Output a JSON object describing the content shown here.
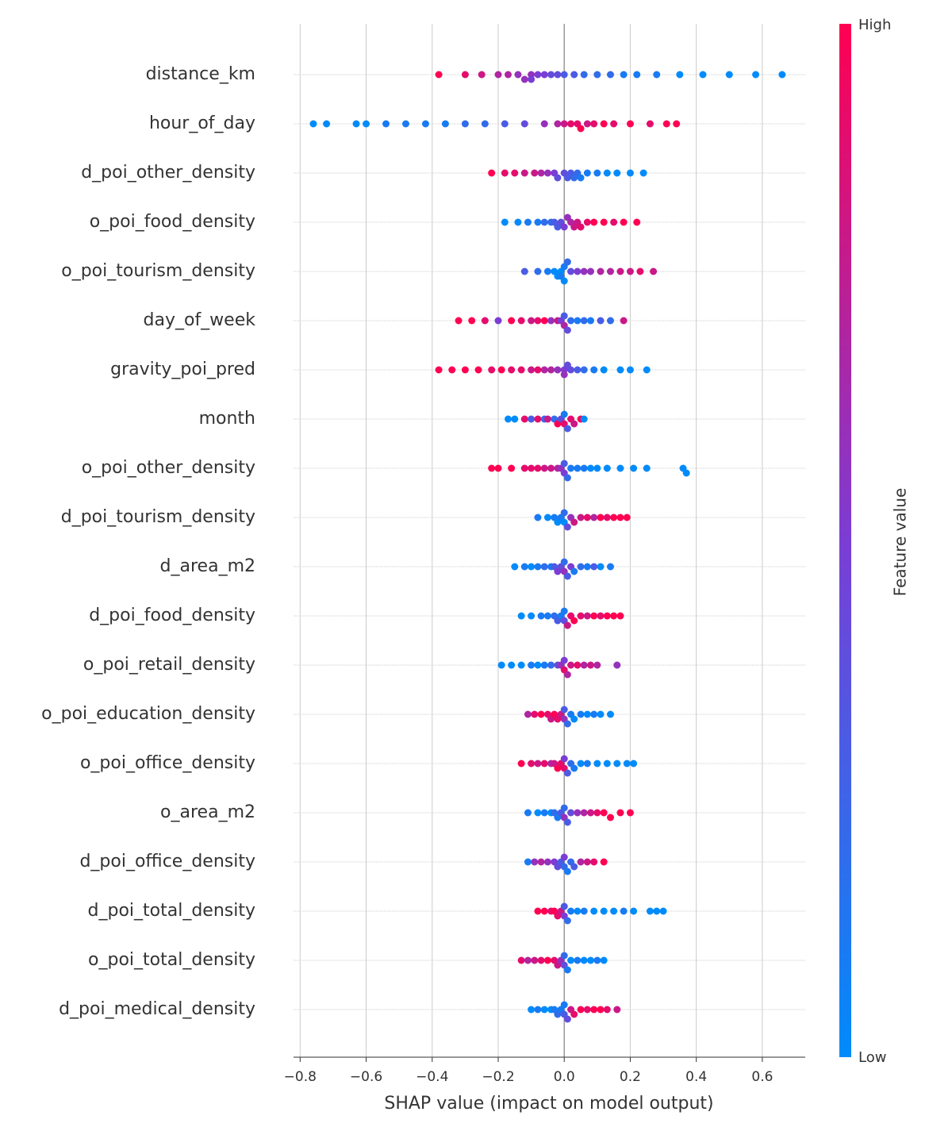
{
  "chart_data": {
    "type": "beeswarm",
    "xlabel": "SHAP value (impact on model output)",
    "xlim": [
      -0.82,
      0.73
    ],
    "xticks": [
      {
        "value": -0.8,
        "label": "−0.8"
      },
      {
        "value": -0.6,
        "label": "−0.6"
      },
      {
        "value": -0.4,
        "label": "−0.4"
      },
      {
        "value": -0.2,
        "label": "−0.2"
      },
      {
        "value": 0,
        "label": "0.0"
      },
      0.2,
      0.4,
      0.6
    ],
    "grid": true,
    "colorbar_label": "Feature value",
    "colorbar_high": "High",
    "colorbar_low": "Low",
    "colormap": [
      "#008bfb",
      "#7b3dd4",
      "#ff0052"
    ],
    "categories": [
      "distance_km",
      "hour_of_day",
      "d_poi_other_density",
      "o_poi_food_density",
      "o_poi_tourism_density",
      "day_of_week",
      "gravity_poi_pred",
      "month",
      "o_poi_other_density",
      "d_poi_tourism_density",
      "d_area_m2",
      "d_poi_food_density",
      "o_poi_retail_density",
      "o_poi_education_density",
      "o_poi_office_density",
      "o_area_m2",
      "d_poi_office_density",
      "d_poi_total_density",
      "o_poi_total_density",
      "d_poi_medical_density"
    ],
    "points": [
      {
        "shap": [
          -0.38,
          -0.3,
          -0.25,
          -0.2,
          -0.17,
          -0.14,
          -0.12,
          -0.1,
          -0.1,
          -0.08,
          -0.06,
          -0.04,
          -0.02,
          0,
          0.03,
          0.06,
          0.1,
          0.14,
          0.18,
          0.22,
          0.28,
          0.35,
          0.42,
          0.5,
          0.58,
          0.66
        ],
        "feature": [
          1,
          0.9,
          0.8,
          0.7,
          0.7,
          0.6,
          0.6,
          0.6,
          0.5,
          0.5,
          0.5,
          0.4,
          0.4,
          0.3,
          0.3,
          0.2,
          0.2,
          0.2,
          0.1,
          0.1,
          0.1,
          0,
          0,
          0,
          0,
          0
        ]
      },
      {
        "shap": [
          -0.76,
          -0.72,
          -0.63,
          -0.6,
          -0.54,
          -0.48,
          -0.42,
          -0.36,
          -0.3,
          -0.24,
          -0.18,
          -0.12,
          -0.06,
          -0.02,
          0,
          0.02,
          0.04,
          0.05,
          0.07,
          0.09,
          0.12,
          0.15,
          0.2,
          0.26,
          0.31,
          0.34
        ],
        "feature": [
          0,
          0,
          0,
          0,
          0.1,
          0.1,
          0.1,
          0.1,
          0.2,
          0.2,
          0.3,
          0.4,
          0.6,
          0.7,
          0.8,
          0.9,
          0.9,
          1,
          0.8,
          0.9,
          1,
          0.9,
          1,
          0.9,
          1,
          1
        ]
      },
      {
        "shap": [
          -0.22,
          -0.18,
          -0.15,
          -0.12,
          -0.09,
          -0.07,
          -0.05,
          -0.03,
          -0.02,
          0,
          0.01,
          0.02,
          0.03,
          0.04,
          0.05,
          0.07,
          0.1,
          0.13,
          0.16,
          0.2,
          0.24
        ],
        "feature": [
          1,
          0.9,
          0.9,
          0.8,
          0.8,
          0.7,
          0.6,
          0.5,
          0.4,
          0.4,
          0.3,
          0.3,
          0.2,
          0.2,
          0.1,
          0.1,
          0.1,
          0,
          0,
          0,
          0
        ]
      },
      {
        "shap": [
          -0.18,
          -0.14,
          -0.11,
          -0.08,
          -0.06,
          -0.04,
          -0.03,
          -0.02,
          -0.01,
          0,
          0.01,
          0.02,
          0.03,
          0.04,
          0.05,
          0.07,
          0.09,
          0.12,
          0.15,
          0.18,
          0.22
        ],
        "feature": [
          0,
          0,
          0.1,
          0.1,
          0.2,
          0.2,
          0.3,
          0.3,
          0.4,
          0.5,
          0.6,
          0.7,
          0.8,
          0.8,
          0.9,
          0.9,
          1,
          1,
          0.9,
          1,
          1
        ]
      },
      {
        "shap": [
          -0.12,
          -0.08,
          -0.05,
          -0.03,
          -0.02,
          -0.01,
          -0.01,
          0,
          0,
          0.01,
          0.02,
          0.04,
          0.06,
          0.08,
          0.11,
          0.14,
          0.17,
          0.2,
          0.23,
          0.27
        ],
        "feature": [
          0.3,
          0.2,
          0.1,
          0,
          0,
          0,
          0.1,
          0.1,
          0,
          0.2,
          0.4,
          0.5,
          0.6,
          0.6,
          0.7,
          0.7,
          0.8,
          0.8,
          0.9,
          0.8
        ]
      },
      {
        "shap": [
          -0.32,
          -0.28,
          -0.24,
          -0.2,
          -0.16,
          -0.13,
          -0.1,
          -0.08,
          -0.06,
          -0.04,
          -0.02,
          -0.01,
          0,
          0,
          0.01,
          0.02,
          0.04,
          0.06,
          0.08,
          0.11,
          0.14,
          0.18
        ],
        "feature": [
          1,
          1,
          0.9,
          0.5,
          1,
          0.9,
          0.8,
          0.9,
          1,
          0.6,
          0.8,
          0.5,
          0.7,
          0.3,
          0.4,
          0.2,
          0.1,
          0.2,
          0.1,
          0.3,
          0.2,
          0.8
        ]
      },
      {
        "shap": [
          -0.38,
          -0.34,
          -0.3,
          -0.26,
          -0.22,
          -0.19,
          -0.16,
          -0.13,
          -0.1,
          -0.08,
          -0.06,
          -0.04,
          -0.02,
          0,
          0,
          0.01,
          0.02,
          0.04,
          0.06,
          0.09,
          0.12,
          0.17,
          0.2,
          0.25
        ],
        "feature": [
          1,
          1,
          1,
          1,
          0.9,
          1,
          0.9,
          0.9,
          0.8,
          0.9,
          0.7,
          0.7,
          0.6,
          0.5,
          0.6,
          0.4,
          0.4,
          0.3,
          0.2,
          0.1,
          0,
          0,
          0,
          0
        ]
      },
      {
        "shap": [
          -0.17,
          -0.15,
          -0.12,
          -0.1,
          -0.08,
          -0.06,
          -0.05,
          -0.03,
          -0.02,
          -0.01,
          0,
          0,
          0.01,
          0.02,
          0.03,
          0.05,
          0.06
        ],
        "feature": [
          0,
          0,
          0.9,
          0.3,
          0.9,
          0.2,
          0.8,
          0.2,
          1,
          0.4,
          0.9,
          0.1,
          0.3,
          0.9,
          0.8,
          1,
          0
        ]
      },
      {
        "shap": [
          -0.22,
          -0.2,
          -0.16,
          -0.12,
          -0.1,
          -0.08,
          -0.06,
          -0.04,
          -0.02,
          -0.01,
          0,
          0,
          0.01,
          0.02,
          0.04,
          0.06,
          0.08,
          0.1,
          0.13,
          0.17,
          0.21,
          0.25,
          0.36,
          0.37
        ],
        "feature": [
          1,
          1,
          1,
          0.9,
          0.9,
          0.9,
          0.8,
          0.8,
          0.7,
          0.6,
          0.5,
          0.3,
          0.2,
          0.1,
          0.1,
          0.1,
          0,
          0,
          0,
          0,
          0,
          0,
          0,
          0
        ]
      },
      {
        "shap": [
          -0.08,
          -0.05,
          -0.03,
          -0.02,
          -0.01,
          0,
          0,
          0.01,
          0.02,
          0.03,
          0.05,
          0.07,
          0.09,
          0.11,
          0.13,
          0.15,
          0.17,
          0.19
        ],
        "feature": [
          0.1,
          0,
          0.1,
          0,
          0.1,
          0,
          0.2,
          0.4,
          0.6,
          0.8,
          0.8,
          0.9,
          0.7,
          1,
          0.9,
          1,
          1,
          1
        ]
      },
      {
        "shap": [
          -0.15,
          -0.12,
          -0.1,
          -0.08,
          -0.06,
          -0.04,
          -0.03,
          -0.02,
          -0.01,
          0,
          0,
          0.01,
          0.02,
          0.03,
          0.05,
          0.07,
          0.09,
          0.11,
          0.14
        ],
        "feature": [
          0,
          0.1,
          0,
          0.1,
          0.2,
          0.1,
          0.3,
          0.5,
          0.4,
          0.6,
          0.2,
          0.3,
          0.5,
          0.1,
          0.2,
          0.1,
          0.3,
          0,
          0.1
        ]
      },
      {
        "shap": [
          -0.13,
          -0.1,
          -0.07,
          -0.05,
          -0.03,
          -0.02,
          -0.01,
          0,
          0,
          0.01,
          0.02,
          0.03,
          0.05,
          0.07,
          0.09,
          0.11,
          0.13,
          0.15,
          0.17
        ],
        "feature": [
          0,
          0,
          0.1,
          0.1,
          0.2,
          0.3,
          0.1,
          0.4,
          0.1,
          0.8,
          0.9,
          1,
          0.9,
          0.8,
          1,
          0.9,
          1,
          1,
          1
        ]
      },
      {
        "shap": [
          -0.19,
          -0.16,
          -0.13,
          -0.1,
          -0.08,
          -0.06,
          -0.04,
          -0.02,
          -0.01,
          0,
          0,
          0.01,
          0.02,
          0.04,
          0.06,
          0.08,
          0.1,
          0.16
        ],
        "feature": [
          0,
          0,
          0,
          0.1,
          0,
          0.1,
          0.2,
          0.4,
          0.6,
          0.9,
          0.5,
          0.7,
          0.8,
          0.9,
          0.7,
          0.8,
          0.7,
          0.6
        ]
      },
      {
        "shap": [
          -0.11,
          -0.09,
          -0.07,
          -0.05,
          -0.04,
          -0.03,
          -0.02,
          -0.01,
          0,
          0,
          0.01,
          0.02,
          0.03,
          0.05,
          0.07,
          0.09,
          0.11,
          0.14
        ],
        "feature": [
          0.7,
          0.9,
          1,
          0.9,
          0.8,
          1,
          0.9,
          0.8,
          0.6,
          0.3,
          0.2,
          0.1,
          0,
          0.1,
          0,
          0.1,
          0,
          0
        ]
      },
      {
        "shap": [
          -0.13,
          -0.1,
          -0.08,
          -0.06,
          -0.04,
          -0.03,
          -0.02,
          -0.01,
          0,
          0,
          0.01,
          0.02,
          0.03,
          0.05,
          0.07,
          0.1,
          0.13,
          0.16,
          0.19,
          0.21
        ],
        "feature": [
          1,
          0.9,
          0.8,
          0.9,
          0.7,
          0.8,
          1,
          0.9,
          0.9,
          0.5,
          0.3,
          0.2,
          0.1,
          0,
          0.1,
          0,
          0,
          0,
          0,
          0
        ]
      },
      {
        "shap": [
          -0.11,
          -0.08,
          -0.06,
          -0.04,
          -0.03,
          -0.02,
          -0.01,
          0,
          0,
          0.01,
          0.02,
          0.04,
          0.06,
          0.08,
          0.1,
          0.12,
          0.14,
          0.17,
          0.2
        ],
        "feature": [
          0.1,
          0,
          0.1,
          0,
          0.2,
          0.1,
          0.3,
          0.6,
          0.2,
          0.3,
          0.4,
          0.6,
          0.7,
          0.8,
          0.9,
          1,
          1,
          1,
          1
        ]
      },
      {
        "shap": [
          -0.11,
          -0.09,
          -0.07,
          -0.05,
          -0.03,
          -0.02,
          -0.01,
          0,
          0,
          0.01,
          0.02,
          0.03,
          0.05,
          0.07,
          0.09,
          0.12
        ],
        "feature": [
          0.1,
          0.6,
          0.7,
          0.6,
          0.5,
          0.4,
          0.3,
          0.2,
          0.5,
          0.1,
          0.2,
          0.3,
          0.7,
          0.8,
          0.9,
          1
        ]
      },
      {
        "shap": [
          -0.08,
          -0.06,
          -0.04,
          -0.03,
          -0.02,
          -0.01,
          0,
          0,
          0.01,
          0.02,
          0.04,
          0.06,
          0.09,
          0.12,
          0.15,
          0.18,
          0.21,
          0.26,
          0.28,
          0.3
        ],
        "feature": [
          1,
          1,
          0.9,
          1,
          0.9,
          0.8,
          0.5,
          0.3,
          0.2,
          0.1,
          0,
          0.1,
          0,
          0,
          0,
          0.1,
          0,
          0,
          0,
          0
        ]
      },
      {
        "shap": [
          -0.13,
          -0.11,
          -0.09,
          -0.07,
          -0.05,
          -0.03,
          -0.02,
          -0.01,
          0,
          0,
          0.01,
          0.02,
          0.04,
          0.06,
          0.08,
          0.1,
          0.12
        ],
        "feature": [
          0.9,
          0.7,
          0.8,
          0.9,
          1,
          0.9,
          0.8,
          0.6,
          0.4,
          0.2,
          0.1,
          0,
          0.1,
          0,
          0,
          0.1,
          0
        ]
      },
      {
        "shap": [
          -0.1,
          -0.08,
          -0.06,
          -0.04,
          -0.03,
          -0.02,
          -0.01,
          0,
          0,
          0.01,
          0.02,
          0.03,
          0.05,
          0.07,
          0.09,
          0.11,
          0.13,
          0.16
        ],
        "feature": [
          0,
          0.1,
          0,
          0,
          0.1,
          0.2,
          0.1,
          0.3,
          0.1,
          0.4,
          0.8,
          0.9,
          1,
          0.9,
          1,
          1,
          0.9,
          0.8
        ]
      }
    ]
  }
}
